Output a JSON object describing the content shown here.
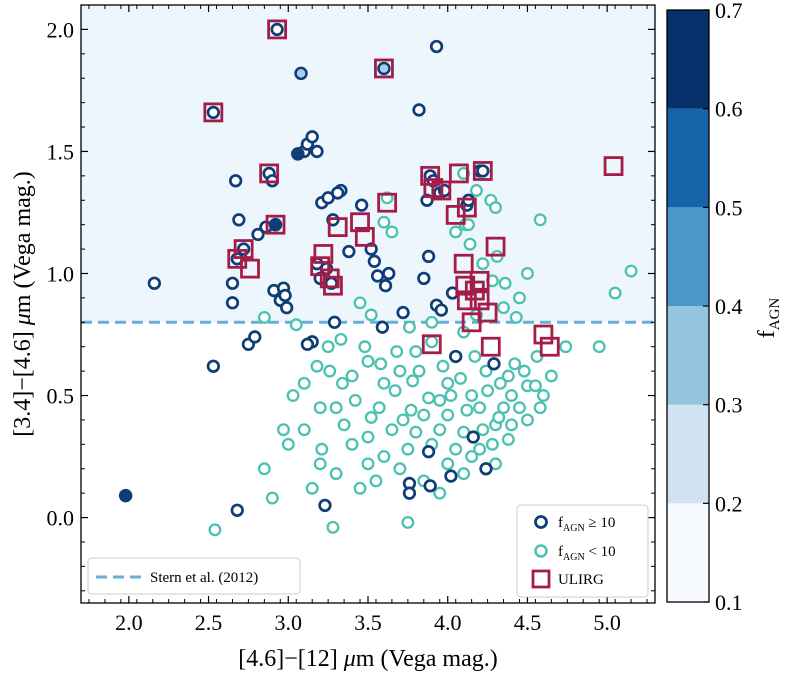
{
  "chart_data": {
    "type": "scatter",
    "xlabel_parts": [
      "[4.6]",
      "−",
      "[12] ",
      "μ",
      "m (Vega mag.)"
    ],
    "ylabel_parts": [
      "[3.4]",
      "−",
      "[4.6] ",
      "μ",
      "m (Vega mag.)"
    ],
    "xlim": [
      1.7,
      5.3
    ],
    "ylim": [
      -0.35,
      2.1
    ],
    "xticks": [
      2.0,
      2.5,
      3.0,
      3.5,
      4.0,
      4.5,
      5.0
    ],
    "xtick_labels": [
      "2.0",
      "2.5",
      "3.0",
      "3.5",
      "4.0",
      "4.5",
      "5.0"
    ],
    "yticks": [
      0.0,
      0.5,
      1.0,
      1.5,
      2.0
    ],
    "ytick_labels": [
      "0.0",
      "0.5",
      "1.0",
      "1.5",
      "2.0"
    ],
    "agn_region": {
      "y_min": 0.8,
      "color": "#eef6fd"
    },
    "stern_line": {
      "y": 0.8,
      "label": "Stern et al. (2012)",
      "color": "#6aaed6"
    },
    "legend": {
      "high": {
        "main": "f",
        "sub": "AGN",
        "rest": " ≥ 10"
      },
      "low": {
        "main": "f",
        "sub": "AGN",
        "rest": " < 10"
      },
      "ulirg": "ULIRG"
    },
    "colorbar": {
      "label_main": "f",
      "label_sub": "AGN",
      "bounds": [
        0.1,
        0.2,
        0.3,
        0.4,
        0.5,
        0.6,
        0.7
      ],
      "tick_labels": [
        "0.1",
        "0.2",
        "0.3",
        "0.4",
        "0.5",
        "0.6",
        "0.7"
      ],
      "colors": [
        "#f7fbff",
        "#d0e1f2",
        "#94c4df",
        "#4a98c9",
        "#1764ab",
        "#08306b"
      ]
    },
    "colors": {
      "high_edge": "#0e3d78",
      "low_edge": "#4bc1b1",
      "ulirg": "#a51c46",
      "filled_dark": "#0e3d78",
      "filled_light": "#a8cde6"
    },
    "series_high": [
      [
        2.53,
        1.66
      ],
      [
        2.93,
        2.0
      ],
      [
        2.88,
        1.41
      ],
      [
        2.9,
        1.38
      ],
      [
        2.67,
        1.38
      ],
      [
        2.69,
        1.22
      ],
      [
        2.68,
        1.06
      ],
      [
        2.72,
        1.1
      ],
      [
        2.65,
        0.96
      ],
      [
        2.65,
        0.88
      ],
      [
        2.75,
        0.71
      ],
      [
        2.79,
        0.74
      ],
      [
        2.81,
        1.16
      ],
      [
        2.86,
        1.19
      ],
      [
        2.91,
        0.93
      ],
      [
        2.95,
        0.89
      ],
      [
        2.97,
        0.94
      ],
      [
        2.98,
        0.91
      ],
      [
        2.99,
        0.86
      ],
      [
        3.06,
        1.49
      ],
      [
        3.1,
        1.5
      ],
      [
        3.12,
        1.53
      ],
      [
        3.15,
        1.56
      ],
      [
        3.18,
        1.5
      ],
      [
        3.21,
        1.29
      ],
      [
        3.25,
        1.31
      ],
      [
        3.28,
        1.22
      ],
      [
        3.33,
        1.34
      ],
      [
        3.31,
        1.33
      ],
      [
        3.38,
        1.09
      ],
      [
        3.18,
        1.04
      ],
      [
        3.2,
        0.98
      ],
      [
        3.24,
        1.02
      ],
      [
        3.27,
        0.96
      ],
      [
        3.29,
        0.8
      ],
      [
        3.15,
        0.72
      ],
      [
        3.12,
        0.71
      ],
      [
        3.46,
        1.28
      ],
      [
        3.52,
        1.1
      ],
      [
        3.54,
        1.05
      ],
      [
        3.56,
        0.99
      ],
      [
        3.59,
        0.78
      ],
      [
        3.61,
        0.95
      ],
      [
        3.63,
        1.0
      ],
      [
        3.72,
        0.84
      ],
      [
        3.82,
        1.67
      ],
      [
        3.89,
        1.4
      ],
      [
        3.91,
        1.38
      ],
      [
        3.93,
        1.93
      ],
      [
        3.87,
        1.3
      ],
      [
        3.95,
        1.33
      ],
      [
        3.98,
        1.34
      ],
      [
        4.12,
        1.28
      ],
      [
        4.13,
        1.3
      ],
      [
        4.2,
        1.42
      ],
      [
        4.22,
        1.42
      ],
      [
        3.85,
        0.98
      ],
      [
        3.93,
        0.87
      ],
      [
        3.88,
        1.07
      ],
      [
        3.96,
        0.85
      ],
      [
        4.03,
        0.92
      ],
      [
        4.05,
        0.66
      ],
      [
        4.24,
        0.2
      ],
      [
        4.29,
        0.63
      ],
      [
        4.16,
        0.33
      ],
      [
        4.02,
        0.17
      ],
      [
        3.88,
        0.27
      ],
      [
        3.89,
        0.13
      ],
      [
        3.76,
        0.14
      ],
      [
        3.76,
        0.1
      ],
      [
        2.16,
        0.96
      ],
      [
        2.53,
        0.62
      ],
      [
        2.68,
        0.03
      ],
      [
        3.23,
        0.05
      ]
    ],
    "series_filled": [
      [
        1.98,
        0.09,
        "dark"
      ],
      [
        2.92,
        1.2,
        "dark"
      ],
      [
        3.06,
        1.49,
        "dark"
      ],
      [
        3.08,
        1.82,
        "light"
      ],
      [
        3.6,
        1.84,
        "light"
      ]
    ],
    "series_low": [
      [
        2.54,
        -0.05
      ],
      [
        3.28,
        -0.04
      ],
      [
        3.75,
        -0.02
      ],
      [
        2.9,
        0.08
      ],
      [
        3.0,
        0.3
      ],
      [
        3.1,
        0.36
      ],
      [
        3.21,
        0.28
      ],
      [
        2.97,
        0.36
      ],
      [
        2.85,
        0.2
      ],
      [
        3.03,
        0.5
      ],
      [
        3.18,
        0.62
      ],
      [
        3.25,
        0.7
      ],
      [
        3.33,
        0.73
      ],
      [
        3.4,
        0.58
      ],
      [
        3.5,
        0.64
      ],
      [
        3.57,
        0.45
      ],
      [
        3.67,
        0.52
      ],
      [
        3.77,
        0.44
      ],
      [
        3.82,
        0.6
      ],
      [
        3.88,
        0.49
      ],
      [
        3.97,
        0.62
      ],
      [
        4.08,
        0.57
      ],
      [
        4.17,
        0.66
      ],
      [
        4.24,
        0.6
      ],
      [
        4.33,
        0.55
      ],
      [
        4.42,
        0.63
      ],
      [
        4.5,
        0.54
      ],
      [
        4.56,
        0.66
      ],
      [
        4.74,
        0.7
      ],
      [
        4.95,
        0.7
      ],
      [
        5.05,
        0.92
      ],
      [
        5.15,
        1.01
      ],
      [
        4.58,
        1.22
      ],
      [
        4.5,
        1.0
      ],
      [
        4.45,
        0.9
      ],
      [
        4.35,
        0.86
      ],
      [
        4.28,
        0.97
      ],
      [
        4.22,
        1.04
      ],
      [
        4.31,
        1.07
      ],
      [
        4.36,
        0.96
      ],
      [
        4.43,
        0.82
      ],
      [
        4.1,
        1.41
      ],
      [
        4.18,
        1.34
      ],
      [
        4.05,
        1.17
      ],
      [
        4.11,
        1.2
      ],
      [
        4.13,
        1.2
      ],
      [
        4.27,
        1.3
      ],
      [
        4.3,
        1.27
      ],
      [
        4.14,
        1.12
      ],
      [
        4.18,
        0.83
      ],
      [
        3.76,
        0.78
      ],
      [
        3.9,
        0.8
      ],
      [
        3.05,
        0.79
      ],
      [
        2.85,
        0.82
      ],
      [
        3.45,
        0.88
      ],
      [
        3.52,
        0.83
      ],
      [
        3.6,
        1.21
      ],
      [
        3.62,
        1.31
      ],
      [
        3.65,
        1.17
      ],
      [
        4.1,
        0.76
      ],
      [
        3.72,
        0.4
      ],
      [
        3.8,
        0.35
      ],
      [
        3.9,
        0.3
      ],
      [
        4.0,
        0.42
      ],
      [
        4.1,
        0.35
      ],
      [
        4.2,
        0.45
      ],
      [
        4.3,
        0.38
      ],
      [
        4.4,
        0.5
      ],
      [
        4.45,
        0.45
      ],
      [
        4.55,
        0.54
      ],
      [
        3.6,
        0.25
      ],
      [
        3.7,
        0.2
      ],
      [
        3.85,
        0.15
      ],
      [
        3.95,
        0.1
      ],
      [
        4.0,
        0.22
      ],
      [
        4.1,
        0.18
      ],
      [
        4.2,
        0.28
      ],
      [
        4.3,
        0.22
      ],
      [
        4.38,
        0.32
      ],
      [
        3.4,
        0.3
      ],
      [
        3.5,
        0.22
      ],
      [
        3.55,
        0.15
      ],
      [
        3.45,
        0.12
      ],
      [
        3.3,
        0.18
      ],
      [
        3.2,
        0.22
      ],
      [
        3.15,
        0.12
      ],
      [
        3.3,
        0.45
      ],
      [
        3.35,
        0.38
      ],
      [
        3.6,
        0.55
      ],
      [
        3.7,
        0.6
      ],
      [
        3.8,
        0.68
      ],
      [
        3.9,
        0.72
      ],
      [
        4.0,
        0.55
      ],
      [
        4.15,
        0.5
      ],
      [
        4.25,
        0.52
      ],
      [
        4.35,
        0.45
      ],
      [
        3.1,
        0.55
      ],
      [
        3.2,
        0.45
      ],
      [
        3.5,
        0.33
      ],
      [
        3.65,
        0.36
      ],
      [
        3.75,
        0.28
      ],
      [
        3.95,
        0.36
      ],
      [
        4.05,
        0.28
      ],
      [
        4.15,
        0.25
      ],
      [
        4.28,
        0.3
      ],
      [
        4.4,
        0.38
      ],
      [
        4.5,
        0.4
      ],
      [
        3.85,
        0.42
      ],
      [
        3.95,
        0.48
      ],
      [
        4.02,
        0.5
      ],
      [
        4.12,
        0.44
      ],
      [
        4.22,
        0.36
      ],
      [
        4.32,
        0.41
      ],
      [
        4.38,
        0.58
      ],
      [
        4.6,
        0.5
      ],
      [
        4.65,
        0.58
      ],
      [
        3.52,
        0.41
      ],
      [
        3.42,
        0.48
      ],
      [
        3.34,
        0.55
      ],
      [
        3.26,
        0.6
      ],
      [
        3.48,
        0.7
      ],
      [
        3.58,
        0.63
      ],
      [
        3.68,
        0.68
      ],
      [
        3.78,
        0.56
      ],
      [
        4.48,
        0.6
      ],
      [
        4.58,
        0.45
      ]
    ],
    "series_ulirg": [
      [
        2.53,
        1.66
      ],
      [
        2.93,
        2.0
      ],
      [
        2.88,
        1.41
      ],
      [
        2.92,
        1.2
      ],
      [
        2.68,
        1.06
      ],
      [
        2.72,
        1.1
      ],
      [
        2.76,
        1.02
      ],
      [
        3.2,
        1.03
      ],
      [
        3.22,
        1.08
      ],
      [
        3.26,
        0.98
      ],
      [
        3.28,
        0.95
      ],
      [
        3.31,
        1.19
      ],
      [
        3.45,
        1.21
      ],
      [
        3.48,
        1.15
      ],
      [
        3.6,
        1.84
      ],
      [
        3.62,
        1.29
      ],
      [
        3.89,
        1.4
      ],
      [
        3.91,
        1.35
      ],
      [
        3.96,
        1.34
      ],
      [
        4.05,
        1.24
      ],
      [
        4.07,
        1.41
      ],
      [
        4.12,
        1.27
      ],
      [
        4.22,
        1.42
      ],
      [
        4.3,
        1.11
      ],
      [
        4.1,
        1.04
      ],
      [
        4.11,
        0.95
      ],
      [
        4.12,
        0.89
      ],
      [
        4.15,
        0.8
      ],
      [
        4.2,
        0.89
      ],
      [
        4.25,
        0.84
      ],
      [
        4.2,
        0.97
      ],
      [
        4.17,
        0.93
      ],
      [
        3.9,
        0.71
      ],
      [
        4.27,
        0.7
      ],
      [
        4.6,
        0.75
      ],
      [
        4.64,
        0.7
      ],
      [
        5.04,
        1.44
      ]
    ]
  }
}
